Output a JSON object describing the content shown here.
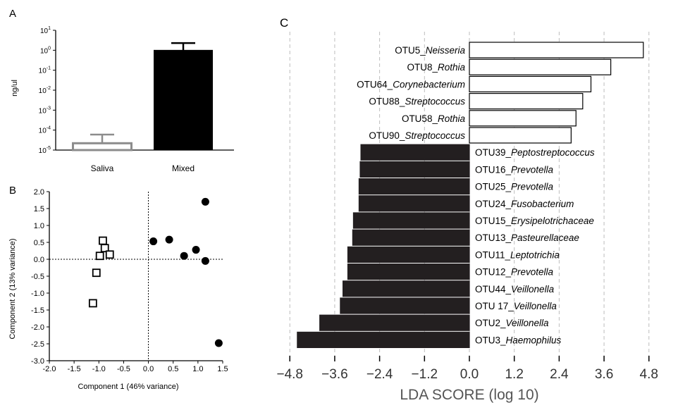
{
  "colors": {
    "ink": "#000000",
    "bar_dark": "#231f20",
    "bar_light": "#ffffff",
    "saliva_bar": "#8c8c8c",
    "grid": "#bdbdbd",
    "lda_axis_text": "#555555"
  },
  "chart_data": [
    {
      "panel": "A",
      "type": "bar",
      "ylabel": "ng/ul",
      "yscale": "log",
      "ylim": [
        1e-05,
        10
      ],
      "ytick_labels": [
        {
          "base": "10",
          "exp": "1"
        },
        {
          "base": "10",
          "exp": "0"
        },
        {
          "base": "10",
          "exp": "-1"
        },
        {
          "base": "10",
          "exp": "-2"
        },
        {
          "base": "10",
          "exp": "-3"
        },
        {
          "base": "10",
          "exp": "-4"
        },
        {
          "base": "10",
          "exp": "-5"
        }
      ],
      "categories": [
        "Saliva",
        "Mixed"
      ],
      "values": [
        2.2e-05,
        1.0
      ],
      "error_upper": [
        6e-05,
        2.3
      ]
    },
    {
      "panel": "B",
      "type": "scatter",
      "xlabel": "Component 1 (46% variance)",
      "ylabel": "Component 2 (13% variance)",
      "xlim": [
        -2.0,
        1.5
      ],
      "ylim": [
        -3.0,
        2.0
      ],
      "xtick_labels": [
        "-2.0",
        "-1.5",
        "-1.0",
        "-0.5",
        "0.0",
        "0.5",
        "1.0",
        "1.5"
      ],
      "ytick_labels": [
        "2.0",
        "1.5",
        "1.0",
        "0.5",
        "0.0",
        "-0.5",
        "-1.0",
        "-1.5",
        "-2.0",
        "-2.5",
        "-3.0"
      ],
      "series": [
        {
          "marker": "open-square",
          "points": [
            [
              -0.92,
              0.55
            ],
            [
              -0.88,
              0.33
            ],
            [
              -0.78,
              0.14
            ],
            [
              -0.98,
              0.1
            ],
            [
              -1.05,
              -0.4
            ],
            [
              -1.12,
              -1.3
            ]
          ]
        },
        {
          "marker": "filled-circle",
          "points": [
            [
              0.1,
              0.53
            ],
            [
              0.42,
              0.58
            ],
            [
              0.72,
              0.1
            ],
            [
              0.96,
              0.28
            ],
            [
              1.15,
              1.7
            ],
            [
              1.15,
              -0.05
            ],
            [
              1.42,
              -2.48
            ]
          ]
        }
      ]
    },
    {
      "panel": "C",
      "type": "bar",
      "orientation": "horizontal",
      "xlabel": "LDA SCORE (log 10)",
      "xlim": [
        -5.2,
        5.2
      ],
      "xtick_labels": [
        "-4.8",
        "-3.6",
        "-2.4",
        "-1.2",
        "0.0",
        "1.2",
        "2.4",
        "3.6",
        "4.8"
      ],
      "grid": "vertical dashed",
      "categories": [
        {
          "prefix": "OTU5_",
          "taxon": "Neisseria",
          "value": 4.65
        },
        {
          "prefix": "OTU8_",
          "taxon": "Rothia",
          "value": 3.78
        },
        {
          "prefix": "OTU64_",
          "taxon": "Corynebacterium",
          "value": 3.25
        },
        {
          "prefix": "OTU88_",
          "taxon": "Streptococcus",
          "value": 3.03
        },
        {
          "prefix": "OTU58_",
          "taxon": "Rothia",
          "value": 2.85
        },
        {
          "prefix": "OTU90_",
          "taxon": "Streptococcus",
          "value": 2.72
        },
        {
          "prefix": "OTU39_",
          "taxon": "Peptostreptococcus",
          "value": -2.9
        },
        {
          "prefix": "OTU16_",
          "taxon": "Prevotella",
          "value": -2.92
        },
        {
          "prefix": "OTU25_",
          "taxon": "Prevotella",
          "value": -2.95
        },
        {
          "prefix": "OTU24_",
          "taxon": "Fusobacterium",
          "value": -2.95
        },
        {
          "prefix": "OTU15_",
          "taxon": "Erysipelotrichaceae",
          "value": -3.1
        },
        {
          "prefix": "OTU13_",
          "taxon": "Pasteurellaceae",
          "value": -3.12
        },
        {
          "prefix": "OTU11_",
          "taxon": "Leptotrichia",
          "value": -3.25
        },
        {
          "prefix": "OTU12_",
          "taxon": "Prevotella",
          "value": -3.25
        },
        {
          "prefix": "OTU44_",
          "taxon": "Veillonella",
          "value": -3.38
        },
        {
          "prefix": "OTU 17_",
          "taxon": "Veillonella",
          "value": -3.45
        },
        {
          "prefix": "OTU2_",
          "taxon": "Veillonella",
          "value": -4.0
        },
        {
          "prefix": "OTU3_",
          "taxon": "Haemophilus",
          "value": -4.6
        }
      ]
    }
  ],
  "panel_labels": {
    "a": "A",
    "b": "B",
    "c": "C"
  }
}
